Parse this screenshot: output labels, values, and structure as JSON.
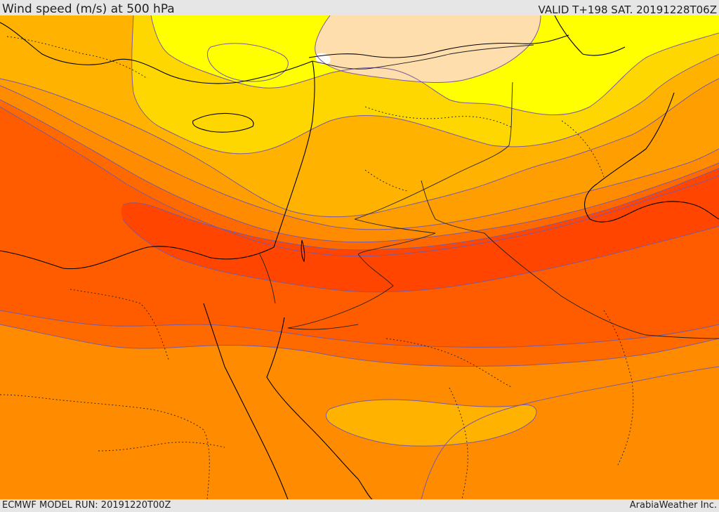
{
  "header": {
    "title": "Wind speed (m/s) at 500 hPa",
    "valid": "VALID T+198 SAT. 20191228T06Z"
  },
  "footer": {
    "model_run": "ECMWF MODEL RUN: 20191220T00Z",
    "credit": "ArabiaWeather Inc."
  },
  "map": {
    "colors": {
      "band_tan": "#ffdead",
      "band_yellow": "#ffff00",
      "band_gold": "#ffd700",
      "band_amber": "#ffb300",
      "band_orange_light": "#ff9e00",
      "band_orange": "#ff8c00",
      "band_orange_dark": "#ff6a00",
      "band_red_orange": "#ff5c00",
      "band_red": "#ff4500",
      "band_white": "#ffffff",
      "contour_line": "#7a5aa0",
      "coast_line": "#000000",
      "border_line": "#222222"
    }
  }
}
